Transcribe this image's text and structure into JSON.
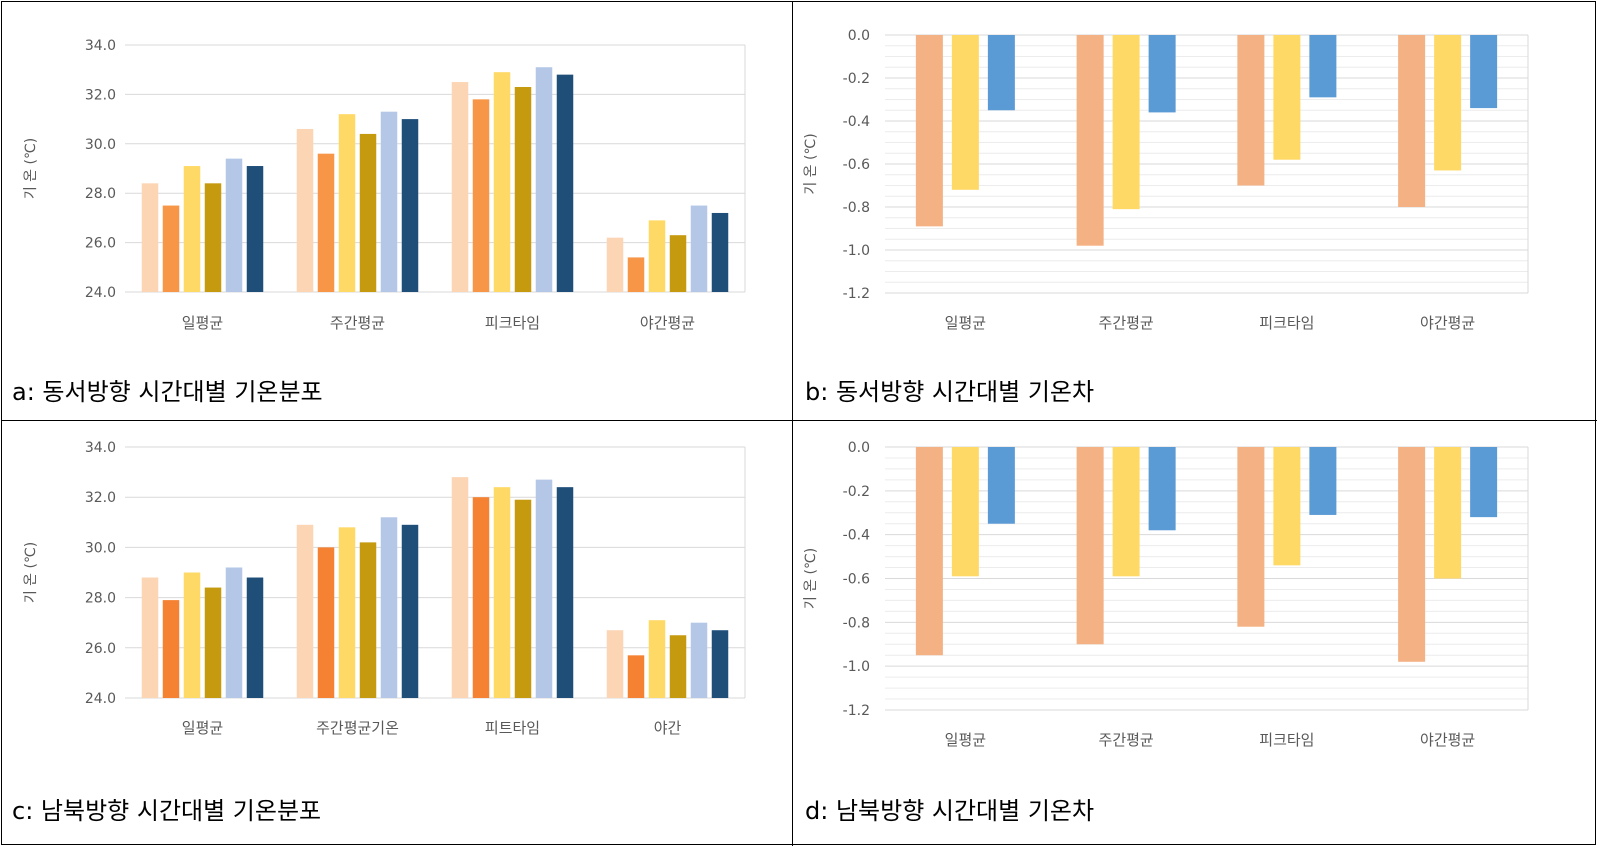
{
  "panels": [
    {
      "id": "a",
      "caption": "a: 동서방향 시간대별 기온분포",
      "chart_data": {
        "type": "bar",
        "title": "",
        "ylabel": "기 온 (℃)",
        "xlabel": "",
        "ylim": [
          24,
          34
        ],
        "yticks": [
          "24.0",
          "26.0",
          "28.0",
          "30.0",
          "32.0",
          "34.0"
        ],
        "categories": [
          "일평균",
          "주간평균",
          "피크타임",
          "야간평균"
        ],
        "series": [
          {
            "name": "series-1",
            "color": "#fcd5b5",
            "values": [
              28.4,
              30.6,
              32.5,
              26.2
            ]
          },
          {
            "name": "series-2",
            "color": "#f79646",
            "values": [
              27.5,
              29.6,
              31.8,
              25.4
            ]
          },
          {
            "name": "series-3",
            "color": "#ffd966",
            "values": [
              29.1,
              31.2,
              32.9,
              26.9
            ]
          },
          {
            "name": "series-4",
            "color": "#c59a0f",
            "values": [
              28.4,
              30.4,
              32.3,
              26.3
            ]
          },
          {
            "name": "series-5",
            "color": "#b4c7e7",
            "values": [
              29.4,
              31.3,
              33.1,
              27.5
            ]
          },
          {
            "name": "series-6",
            "color": "#1f4e79",
            "values": [
              29.1,
              31.0,
              32.8,
              27.2
            ]
          }
        ],
        "grid": true
      }
    },
    {
      "id": "b",
      "caption": "b: 동서방향 시간대별 기온차",
      "chart_data": {
        "type": "bar",
        "title": "",
        "ylabel": "기 온 (℃)",
        "xlabel": "",
        "ylim": [
          -1.2,
          0
        ],
        "yticks": [
          "-1.2",
          "-1.0",
          "-0.8",
          "-0.6",
          "-0.4",
          "-0.2",
          "0.0"
        ],
        "categories": [
          "일평균",
          "주간평균",
          "피크타임",
          "야간평균"
        ],
        "series": [
          {
            "name": "series-1",
            "color": "#f4b183",
            "values": [
              -0.89,
              -0.98,
              -0.7,
              -0.8
            ]
          },
          {
            "name": "series-2",
            "color": "#ffd966",
            "values": [
              -0.72,
              -0.81,
              -0.58,
              -0.63
            ]
          },
          {
            "name": "series-3",
            "color": "#5b9bd5",
            "values": [
              -0.35,
              -0.36,
              -0.29,
              -0.34
            ]
          }
        ],
        "grid": true
      }
    },
    {
      "id": "c",
      "caption": "c: 남북방향 시간대별 기온분포",
      "chart_data": {
        "type": "bar",
        "title": "",
        "ylabel": "기 온 (℃)",
        "xlabel": "",
        "ylim": [
          24,
          34
        ],
        "yticks": [
          "24.0",
          "26.0",
          "28.0",
          "30.0",
          "32.0",
          "34.0"
        ],
        "categories": [
          "일평균",
          "주간평균기온",
          "피트타임",
          "야간"
        ],
        "series": [
          {
            "name": "series-1",
            "color": "#fcd5b5",
            "values": [
              28.8,
              30.9,
              32.8,
              26.7
            ]
          },
          {
            "name": "series-2",
            "color": "#f58232",
            "values": [
              27.9,
              30.0,
              32.0,
              25.7
            ]
          },
          {
            "name": "series-3",
            "color": "#ffd966",
            "values": [
              29.0,
              30.8,
              32.4,
              27.1
            ]
          },
          {
            "name": "series-4",
            "color": "#c59a0f",
            "values": [
              28.4,
              30.2,
              31.9,
              26.5
            ]
          },
          {
            "name": "series-5",
            "color": "#b4c7e7",
            "values": [
              29.2,
              31.2,
              32.7,
              27.0
            ]
          },
          {
            "name": "series-6",
            "color": "#1f4e79",
            "values": [
              28.8,
              30.9,
              32.4,
              26.7
            ]
          }
        ],
        "grid": true
      }
    },
    {
      "id": "d",
      "caption": "d: 남북방향 시간대별 기온차",
      "chart_data": {
        "type": "bar",
        "title": "",
        "ylabel": "기 온 (℃)",
        "xlabel": "",
        "ylim": [
          -1.2,
          0
        ],
        "yticks": [
          "-1.2",
          "-1.0",
          "-0.8",
          "-0.6",
          "-0.4",
          "-0.2",
          "0.0"
        ],
        "categories": [
          "일평균",
          "주간평균",
          "피크타임",
          "야간평균"
        ],
        "series": [
          {
            "name": "series-1",
            "color": "#f4b183",
            "values": [
              -0.95,
              -0.9,
              -0.82,
              -0.98
            ]
          },
          {
            "name": "series-2",
            "color": "#ffd966",
            "values": [
              -0.59,
              -0.59,
              -0.54,
              -0.6
            ]
          },
          {
            "name": "series-3",
            "color": "#5b9bd5",
            "values": [
              -0.35,
              -0.38,
              -0.31,
              -0.32
            ]
          }
        ],
        "grid": true
      }
    }
  ]
}
